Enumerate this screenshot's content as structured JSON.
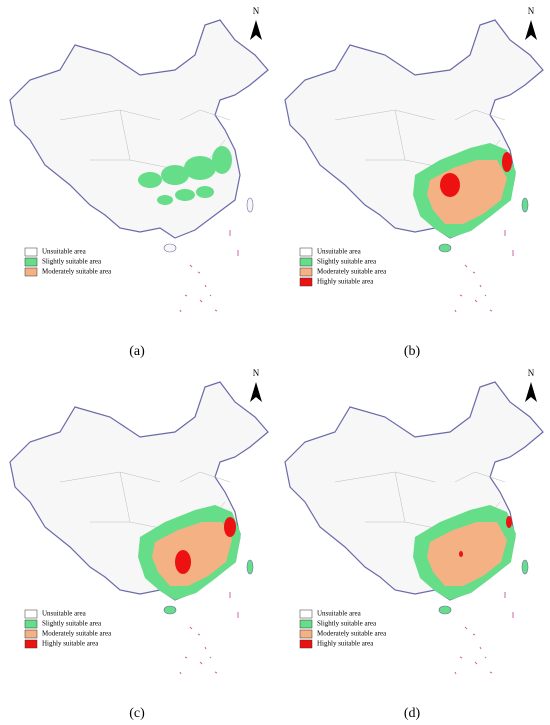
{
  "panels": [
    {
      "label": "(a)",
      "north": "N",
      "legend": [
        {
          "text": "Unsuitable area",
          "color": "#ffffff"
        },
        {
          "text": "Slightly suitable area",
          "color": "#66dd88"
        },
        {
          "text": "Moderately suitable area",
          "color": "#f4b183"
        }
      ]
    },
    {
      "label": "(b)",
      "north": "N",
      "legend": [
        {
          "text": "Unsuitable area",
          "color": "#ffffff"
        },
        {
          "text": "Slightly suitable area",
          "color": "#66dd88"
        },
        {
          "text": "Moderately suitable area",
          "color": "#f4b183"
        },
        {
          "text": "Highly suitable area",
          "color": "#ee1111"
        }
      ]
    },
    {
      "label": "(c)",
      "north": "N",
      "legend": [
        {
          "text": "Unsuitable area",
          "color": "#ffffff"
        },
        {
          "text": "Slightly suitable area",
          "color": "#66dd88"
        },
        {
          "text": "Moderately suitable area",
          "color": "#f4b183"
        },
        {
          "text": "Highly suitable area",
          "color": "#ee1111"
        }
      ]
    },
    {
      "label": "(d)",
      "north": "N",
      "legend": [
        {
          "text": "Unsuitable area",
          "color": "#ffffff"
        },
        {
          "text": "Slightly suitable area",
          "color": "#66dd88"
        },
        {
          "text": "Moderately suitable area",
          "color": "#f4b183"
        },
        {
          "text": "Highly suitable area",
          "color": "#ee1111"
        }
      ]
    }
  ]
}
